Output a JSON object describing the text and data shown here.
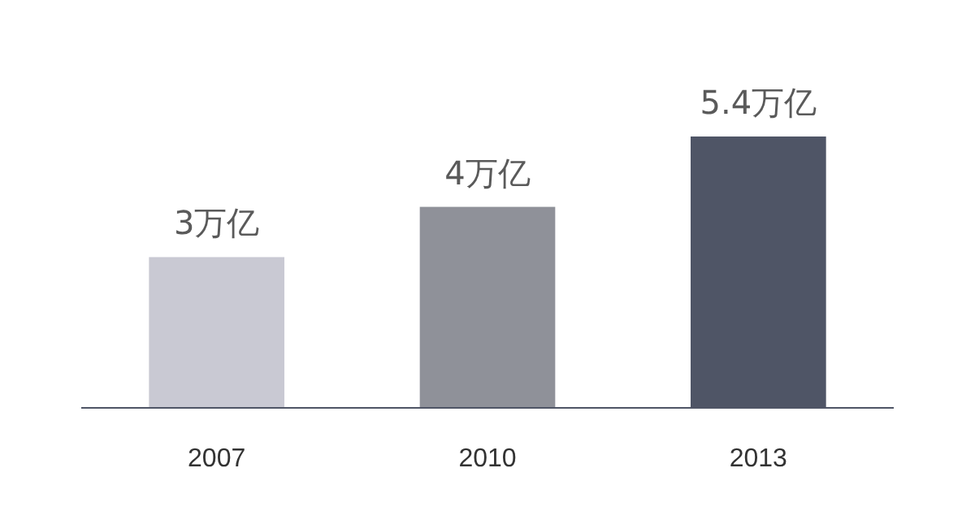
{
  "chart_data": {
    "type": "bar",
    "categories": [
      "2007",
      "2010",
      "2013"
    ],
    "values": [
      3,
      4,
      5.4
    ],
    "colors": [
      "#c9c9d3",
      "#8f9199",
      "#4f5566"
    ],
    "value_labels": [
      "3万亿",
      "4万亿",
      "5.4万亿"
    ]
  }
}
